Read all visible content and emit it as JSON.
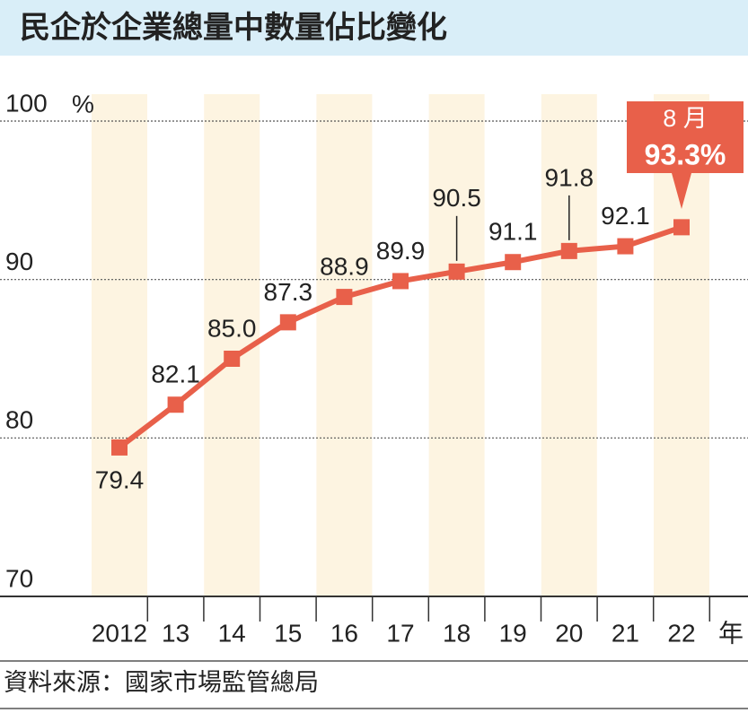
{
  "chart_data": {
    "type": "line",
    "title": "民企於企業總量中數量佔比變化",
    "y_label": "%",
    "x_label": "年",
    "categories": [
      "2012",
      "13",
      "14",
      "15",
      "16",
      "17",
      "18",
      "19",
      "20",
      "21",
      "22"
    ],
    "series": [
      {
        "color": "#e8604a",
        "values": [
          79.4,
          82.1,
          85.0,
          87.3,
          88.9,
          89.9,
          90.5,
          91.1,
          91.8,
          92.1,
          93.3
        ],
        "value_labels": [
          "79.4",
          "82.1",
          "85.0",
          "87.3",
          "88.9",
          "89.9",
          "90.5",
          "91.1",
          "91.8",
          "92.1",
          "93.3%"
        ]
      }
    ],
    "annotation": "8 月",
    "ylim": [
      70,
      100
    ],
    "yticks": [
      70,
      80,
      90,
      100
    ],
    "grid": true,
    "source": "資料來源：國家市場監管總局"
  }
}
